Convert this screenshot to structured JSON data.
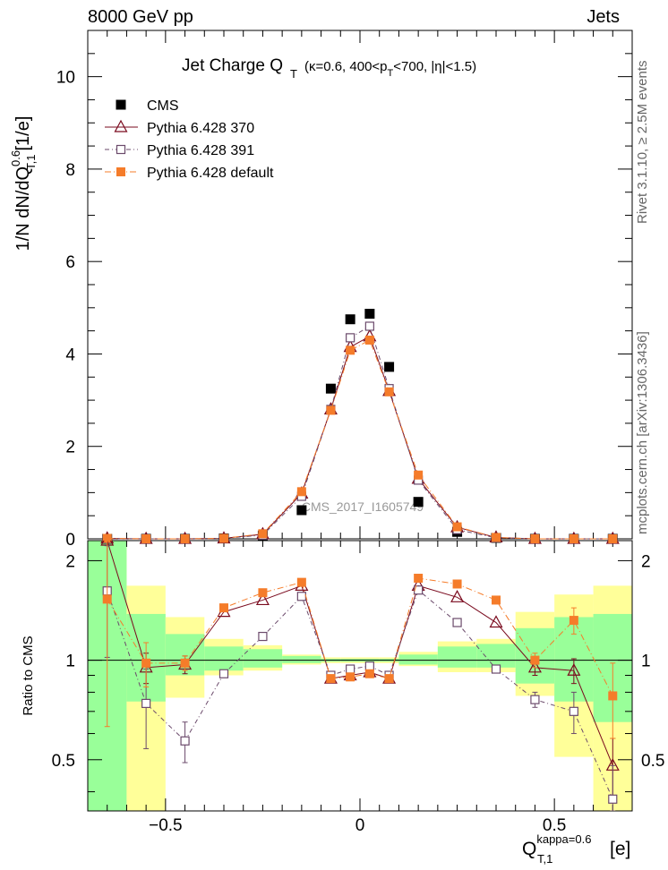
{
  "header": {
    "left": "8000 GeV pp",
    "right": "Jets"
  },
  "side": {
    "rivet": "Rivet 3.1.10, ≥ 2.5M events",
    "mcplots": "mcplots.cern.ch [arXiv:1306.3436]"
  },
  "title": {
    "main": "Jet Charge Q",
    "sub": "T",
    "cuts": "(κ=0.6, 400<p",
    "cuts_sub": "T",
    "cuts_end": "<700, |η|<1.5)"
  },
  "watermark": "CMS_2017_I1605749",
  "ylabel_top": "1/N dN/dQ",
  "ylabel_top_sup": "0.6",
  "ylabel_top_sub": "T,1",
  "ylabel_top_unit": "[1/e]",
  "ylabel_bottom": "Ratio to CMS",
  "xlabel": {
    "main": "Q",
    "sup": "kappa=0.6",
    "sub": "T,1",
    "unit": "[e]"
  },
  "legend": [
    {
      "label": "CMS",
      "marker": "filled-square",
      "color": "#000000"
    },
    {
      "label": "Pythia 6.428 370",
      "marker": "open-triangle",
      "color": "#7a0a1e"
    },
    {
      "label": "Pythia 6.428 391",
      "marker": "open-square",
      "color": "#6b4a6b"
    },
    {
      "label": "Pythia 6.428 default",
      "marker": "filled-square",
      "color": "#f57c2a"
    }
  ],
  "chart_data": [
    {
      "type": "scatter",
      "x": [
        -0.65,
        -0.55,
        -0.45,
        -0.35,
        -0.25,
        -0.15,
        -0.075,
        -0.025,
        0.025,
        0.075,
        0.15,
        0.25,
        0.35,
        0.45,
        0.55,
        0.65
      ],
      "ylim": [
        0,
        11
      ],
      "xlim": [
        -0.7,
        0.7
      ],
      "yticks": [
        0,
        2,
        4,
        6,
        8,
        10
      ],
      "series": [
        {
          "name": "CMS",
          "color": "#000000",
          "values": [
            0.0,
            0.0,
            0.0,
            0.01,
            0.07,
            0.62,
            3.25,
            4.75,
            4.87,
            3.72,
            0.8,
            0.15,
            0.02,
            0.0,
            0.0,
            0.0
          ]
        },
        {
          "name": "Pythia 6.428 370",
          "color": "#7a0a1e",
          "values": [
            0.01,
            0.0,
            0.0,
            0.01,
            0.1,
            0.98,
            2.8,
            4.15,
            4.38,
            3.2,
            1.3,
            0.25,
            0.03,
            0.0,
            0.0,
            0.0
          ]
        },
        {
          "name": "Pythia 6.428 391",
          "color": "#6b4a6b",
          "values": [
            0.0,
            0.0,
            0.0,
            0.01,
            0.08,
            0.92,
            2.8,
            4.35,
            4.6,
            3.25,
            1.27,
            0.2,
            0.02,
            0.0,
            0.0,
            0.0
          ]
        },
        {
          "name": "Pythia 6.428 default",
          "color": "#f57c2a",
          "values": [
            0.01,
            0.0,
            0.0,
            0.01,
            0.11,
            1.02,
            2.78,
            4.08,
            4.3,
            3.18,
            1.38,
            0.26,
            0.03,
            0.0,
            0.0,
            0.0
          ]
        }
      ]
    },
    {
      "type": "line",
      "x": [
        -0.65,
        -0.55,
        -0.45,
        -0.35,
        -0.25,
        -0.15,
        -0.075,
        -0.025,
        0.025,
        0.075,
        0.15,
        0.25,
        0.35,
        0.45,
        0.55,
        0.65
      ],
      "ylim": [
        0.35,
        2.3
      ],
      "xlim": [
        -0.7,
        0.7
      ],
      "xticks": [
        -0.5,
        0,
        0.5
      ],
      "yticks": [
        0.5,
        1,
        2
      ],
      "ylabel": "Ratio to CMS",
      "bands": {
        "edges": [
          -0.7,
          -0.6,
          -0.5,
          -0.4,
          -0.3,
          -0.2,
          -0.1,
          -0.05,
          0,
          0.05,
          0.1,
          0.2,
          0.3,
          0.4,
          0.5,
          0.6,
          0.7
        ],
        "inner": [
          [
            0.35,
            2.3
          ],
          [
            0.75,
            1.38
          ],
          [
            0.9,
            1.2
          ],
          [
            0.93,
            1.1
          ],
          [
            0.95,
            1.08
          ],
          [
            0.98,
            1.03
          ],
          [
            0.99,
            1.01
          ],
          [
            0.99,
            1.01
          ],
          [
            0.99,
            1.01
          ],
          [
            0.99,
            1.01
          ],
          [
            0.97,
            1.04
          ],
          [
            0.95,
            1.1
          ],
          [
            0.95,
            1.12
          ],
          [
            0.85,
            1.25
          ],
          [
            0.75,
            1.35
          ],
          [
            0.65,
            1.38
          ]
        ],
        "outer": [
          [
            0.35,
            2.3
          ],
          [
            0.35,
            1.68
          ],
          [
            0.77,
            1.35
          ],
          [
            0.9,
            1.16
          ],
          [
            0.93,
            1.11
          ],
          [
            0.97,
            1.04
          ],
          [
            0.98,
            1.02
          ],
          [
            0.98,
            1.02
          ],
          [
            0.98,
            1.02
          ],
          [
            0.98,
            1.02
          ],
          [
            0.96,
            1.06
          ],
          [
            0.92,
            1.14
          ],
          [
            0.92,
            1.16
          ],
          [
            0.78,
            1.4
          ],
          [
            0.51,
            1.58
          ],
          [
            0.35,
            1.68
          ]
        ]
      },
      "series": [
        {
          "name": "Pythia 6.428 370",
          "color": "#7a0a1e",
          "values": [
            2.3,
            0.95,
            0.97,
            1.4,
            1.52,
            1.68,
            0.88,
            0.9,
            0.92,
            0.88,
            1.68,
            1.55,
            1.3,
            0.95,
            0.93,
            0.48
          ],
          "errors": [
            0,
            0.1,
            0.06,
            0,
            0,
            0,
            0,
            0,
            0,
            0,
            0,
            0,
            0,
            0.05,
            0.08,
            0.1
          ]
        },
        {
          "name": "Pythia 6.428 391",
          "color": "#6b4a6b",
          "values": [
            1.62,
            0.74,
            0.57,
            0.91,
            1.18,
            1.56,
            0.9,
            0.94,
            0.96,
            0.9,
            1.63,
            1.3,
            0.94,
            0.76,
            0.7,
            0.38
          ],
          "errors": [
            0.6,
            0.2,
            0.08,
            0,
            0,
            0,
            0,
            0,
            0,
            0,
            0,
            0,
            0,
            0.04,
            0.1,
            0.1
          ]
        },
        {
          "name": "Pythia 6.428 default",
          "color": "#f57c2a",
          "values": [
            1.53,
            0.98,
            0.98,
            1.44,
            1.6,
            1.72,
            0.88,
            0.89,
            0.91,
            0.88,
            1.77,
            1.7,
            1.52,
            1.0,
            1.32,
            0.78
          ],
          "errors": [
            0.9,
            0.15,
            0.05,
            0,
            0,
            0,
            0,
            0,
            0,
            0,
            0,
            0,
            0,
            0.05,
            0.12,
            0.2
          ]
        }
      ]
    }
  ]
}
